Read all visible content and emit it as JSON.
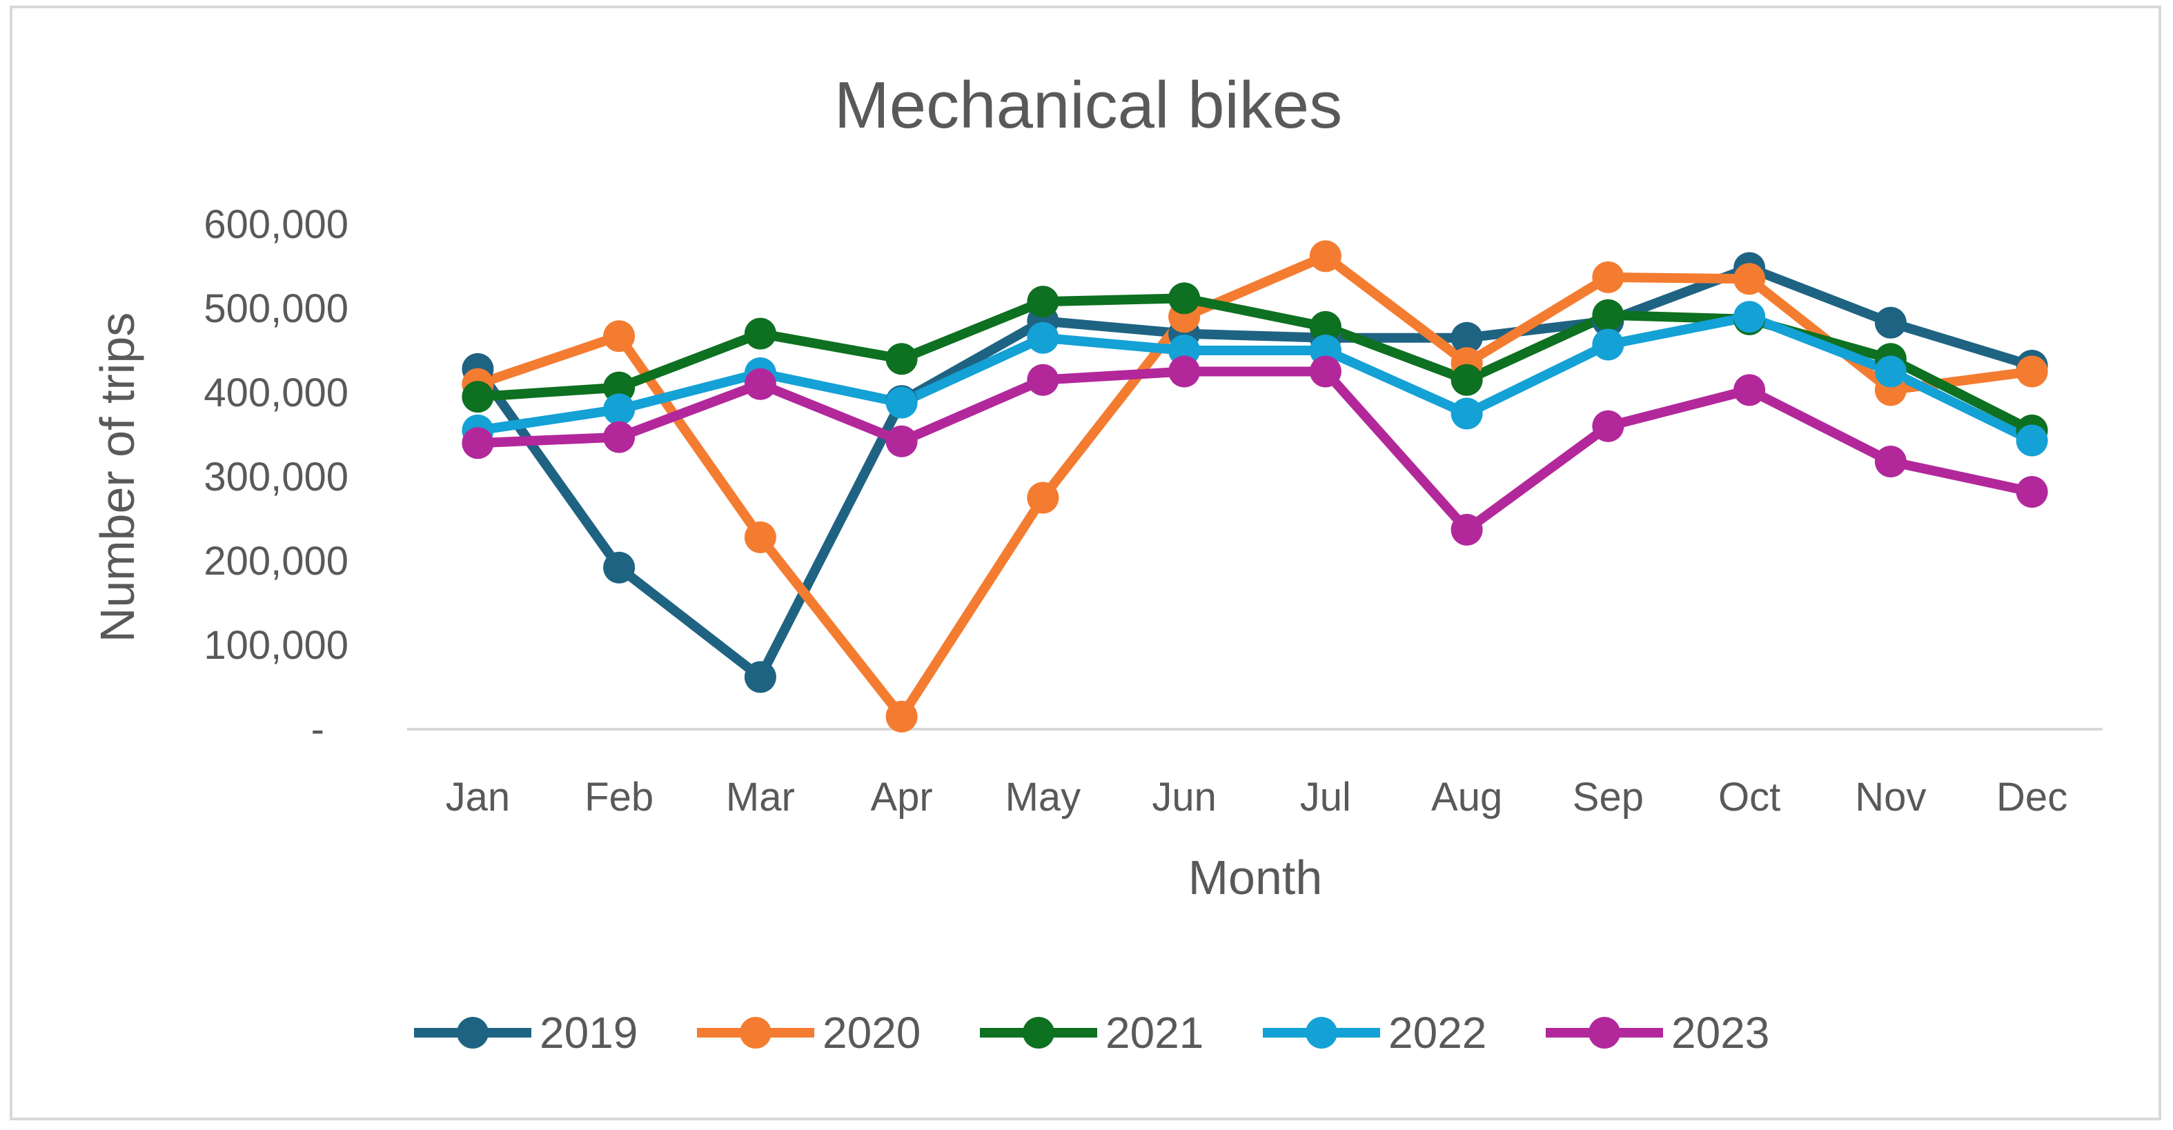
{
  "chart_data": {
    "type": "line",
    "title": "Mechanical bikes",
    "xlabel": "Month",
    "ylabel": "Number of trips",
    "categories": [
      "Jan",
      "Feb",
      "Mar",
      "Apr",
      "May",
      "Jun",
      "Jul",
      "Aug",
      "Sep",
      "Oct",
      "Nov",
      "Dec"
    ],
    "ylim": [
      0,
      600000
    ],
    "yticks": [
      0,
      100000,
      200000,
      300000,
      400000,
      500000,
      600000
    ],
    "ytick_labels": [
      "-",
      "100,000",
      "200,000",
      "300,000",
      "400,000",
      "500,000",
      "600,000"
    ],
    "gridlines": false,
    "legend_position": "bottom",
    "series": [
      {
        "name": "2019",
        "color": "#1f6383",
        "values": [
          428000,
          192000,
          62000,
          390000,
          485000,
          470000,
          465000,
          465000,
          485000,
          548000,
          483000,
          432000
        ]
      },
      {
        "name": "2020",
        "color": "#f47c30",
        "values": [
          410000,
          467000,
          228000,
          15000,
          275000,
          490000,
          562000,
          435000,
          537000,
          535000,
          403000,
          425000
        ]
      },
      {
        "name": "2021",
        "color": "#0e7021",
        "values": [
          395000,
          406000,
          470000,
          440000,
          508000,
          512000,
          478000,
          415000,
          492000,
          487000,
          440000,
          355000
        ]
      },
      {
        "name": "2022",
        "color": "#14a1d6",
        "values": [
          355000,
          380000,
          423000,
          388000,
          465000,
          450000,
          450000,
          375000,
          457000,
          490000,
          425000,
          343000
        ]
      },
      {
        "name": "2023",
        "color": "#b2289b",
        "values": [
          340000,
          347000,
          410000,
          342000,
          415000,
          425000,
          425000,
          237000,
          360000,
          403000,
          318000,
          282000
        ]
      }
    ]
  }
}
